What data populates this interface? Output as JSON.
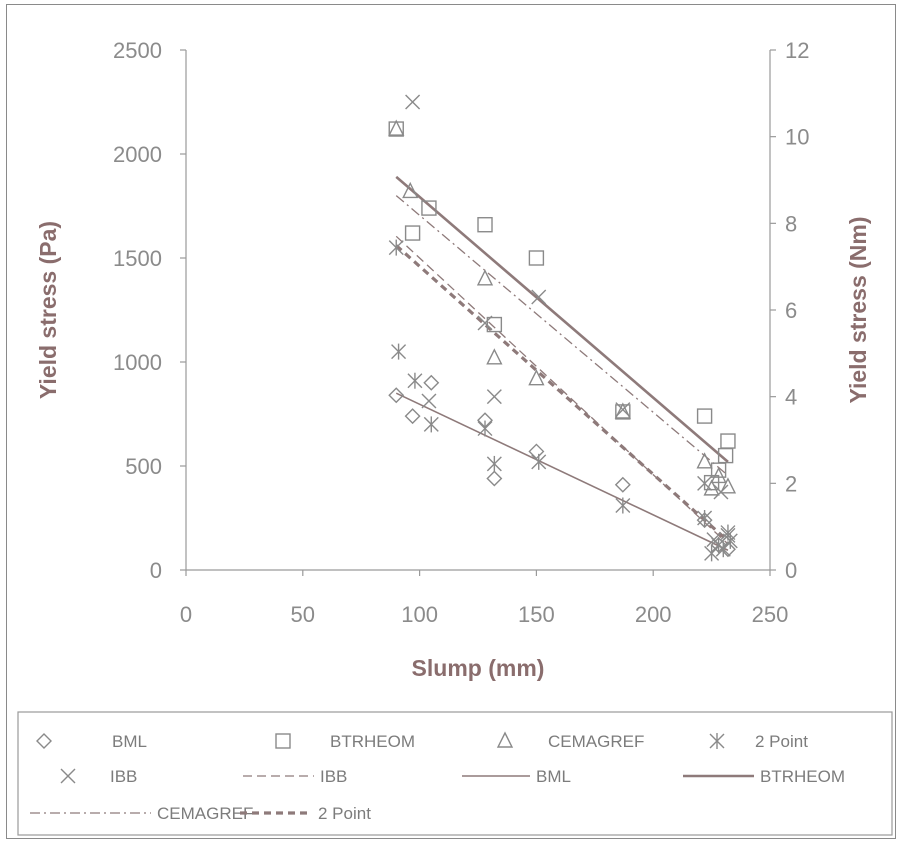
{
  "chart_data": {
    "type": "scatter",
    "xlabel": "Slump (mm)",
    "ylabel": "Yield stress (Pa)",
    "y2label": "Yield stress (Nm)",
    "xlim": [
      0,
      250
    ],
    "ylim": [
      0,
      2500
    ],
    "y2lim": [
      0,
      12
    ],
    "x_ticks": [
      "0",
      "50",
      "100",
      "150",
      "200",
      "250"
    ],
    "y_ticks": [
      "0",
      "500",
      "1000",
      "1500",
      "2000",
      "2500"
    ],
    "y2_ticks": [
      "0",
      "2",
      "4",
      "6",
      "8",
      "10",
      "12"
    ],
    "grid": false,
    "legend_position": "bottom",
    "series": [
      {
        "name": "BML",
        "kind": "points",
        "marker": "diamond",
        "axis": "left",
        "x": [
          90,
          97,
          105,
          128,
          132,
          150,
          187,
          222,
          228,
          232
        ],
        "y": [
          840,
          740,
          900,
          720,
          440,
          570,
          410,
          240,
          120,
          100
        ]
      },
      {
        "name": "BTRHEOM",
        "kind": "points",
        "marker": "square",
        "axis": "left",
        "x": [
          90,
          97,
          104,
          128,
          132,
          150,
          187,
          222,
          225,
          228,
          231,
          232
        ],
        "y": [
          2120,
          1620,
          1740,
          1660,
          1180,
          1500,
          760,
          740,
          420,
          480,
          550,
          620
        ]
      },
      {
        "name": "CEMAGREF",
        "kind": "points",
        "marker": "triangle",
        "axis": "left",
        "x": [
          90,
          96,
          128,
          132,
          150,
          187,
          222,
          225,
          228,
          232
        ],
        "y": [
          2120,
          1820,
          1400,
          1020,
          920,
          760,
          520,
          390,
          450,
          400
        ]
      },
      {
        "name": "2 Point",
        "kind": "points",
        "marker": "asterisk",
        "axis": "left",
        "x": [
          90,
          91,
          98,
          105,
          128,
          132,
          151,
          187,
          222,
          225,
          228,
          230,
          232,
          233
        ],
        "y": [
          1550,
          1050,
          910,
          700,
          680,
          510,
          520,
          310,
          250,
          80,
          120,
          100,
          180,
          140
        ]
      },
      {
        "name": "IBB",
        "kind": "points",
        "marker": "x",
        "axis": "right",
        "x": [
          97,
          104,
          128,
          132,
          151,
          187,
          222,
          226,
          229,
          232
        ],
        "y": [
          10.8,
          3.9,
          5.7,
          4.0,
          6.3,
          3.7,
          2.0,
          0.7,
          1.8,
          0.8
        ]
      },
      {
        "name": "IBB",
        "kind": "fit",
        "style": "dashed",
        "axis": "right",
        "x": [
          90,
          232
        ],
        "y": [
          7.7,
          0.6
        ]
      },
      {
        "name": "BML",
        "kind": "fit",
        "style": "solid",
        "axis": "left",
        "x": [
          90,
          232
        ],
        "y": [
          850,
          95
        ]
      },
      {
        "name": "BTRHEOM",
        "kind": "fit",
        "style": "solid-bold",
        "axis": "left",
        "x": [
          90,
          232
        ],
        "y": [
          1890,
          520
        ]
      },
      {
        "name": "CEMAGREF",
        "kind": "fit",
        "style": "dashdot",
        "axis": "left",
        "x": [
          90,
          232
        ],
        "y": [
          1800,
          455
        ]
      },
      {
        "name": "2 Point",
        "kind": "fit",
        "style": "bold-dashed",
        "axis": "left",
        "x": [
          90,
          232
        ],
        "y": [
          1560,
          140
        ]
      }
    ],
    "legend": [
      {
        "label": "BML",
        "symbol": "diamond"
      },
      {
        "label": "BTRHEOM",
        "symbol": "square"
      },
      {
        "label": "CEMAGREF",
        "symbol": "triangle"
      },
      {
        "label": "2 Point",
        "symbol": "asterisk"
      },
      {
        "label": "IBB",
        "symbol": "x"
      },
      {
        "label": "IBB",
        "symbol": "line-dashed"
      },
      {
        "label": "BML",
        "symbol": "line-solid"
      },
      {
        "label": "BTRHEOM",
        "symbol": "line-solid-bold"
      },
      {
        "label": "CEMAGREF",
        "symbol": "line-dashdot"
      },
      {
        "label": "2 Point",
        "symbol": "line-bold-dashed"
      }
    ]
  },
  "colors": {
    "axis_title": "#8a6d6d",
    "tick_text": "#8b8b8b",
    "markers": "#8a8a8a",
    "fit_lines": "#8e7a7a",
    "legend_text": "#7c7c7c"
  }
}
